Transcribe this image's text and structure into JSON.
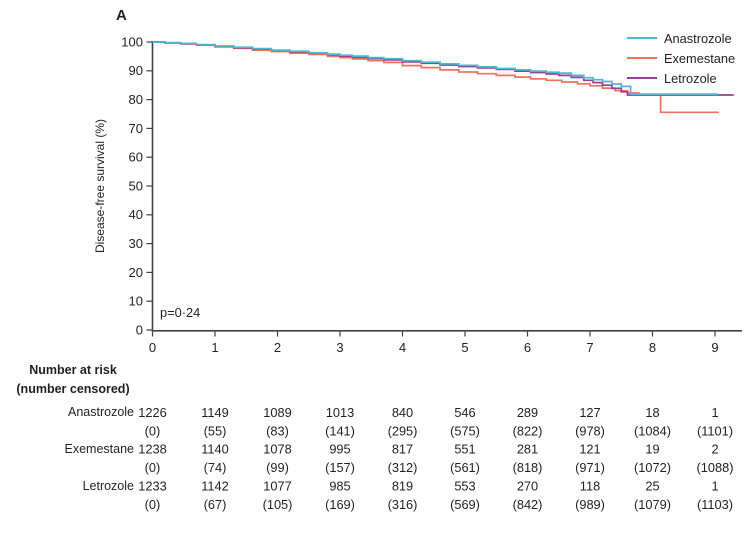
{
  "panel_label": "A",
  "colors": {
    "axis": "#404040",
    "text": "#231f20"
  },
  "chart_data": {
    "type": "line",
    "subtype": "kaplan_meier_step",
    "title": "",
    "xlabel": "",
    "ylabel": "Disease-free survival (%)",
    "xlim": [
      0,
      9.4
    ],
    "ylim": [
      0,
      100
    ],
    "xticks": [
      0,
      1,
      2,
      3,
      4,
      5,
      6,
      7,
      8,
      9
    ],
    "yticks": [
      0,
      10,
      20,
      30,
      40,
      50,
      60,
      70,
      80,
      90,
      100
    ],
    "grid": false,
    "legend_position": "top-right-inside",
    "annotations": [
      {
        "text": "p=0·24",
        "x": 0.25,
        "y": 7
      }
    ],
    "series": [
      {
        "name": "Anastrozole",
        "color": "#4bb9d1",
        "points": [
          [
            0,
            100
          ],
          [
            0.2,
            99.8
          ],
          [
            0.45,
            99.5
          ],
          [
            0.7,
            99.1
          ],
          [
            1,
            98.6
          ],
          [
            1.3,
            98.2
          ],
          [
            1.6,
            97.7
          ],
          [
            1.9,
            97.2
          ],
          [
            2.2,
            96.8
          ],
          [
            2.5,
            96.3
          ],
          [
            2.8,
            95.8
          ],
          [
            3,
            95.4
          ],
          [
            3.2,
            95.1
          ],
          [
            3.45,
            94.6
          ],
          [
            3.7,
            94.2
          ],
          [
            4,
            93.5
          ],
          [
            4.3,
            93.0
          ],
          [
            4.6,
            92.4
          ],
          [
            4.9,
            91.9
          ],
          [
            5.2,
            91.4
          ],
          [
            5.5,
            90.8
          ],
          [
            5.8,
            90.3
          ],
          [
            6.05,
            89.9
          ],
          [
            6.3,
            89.5
          ],
          [
            6.5,
            89.2
          ],
          [
            6.7,
            88.4
          ],
          [
            6.9,
            87.6
          ],
          [
            7.05,
            86.9
          ],
          [
            7.2,
            86.3
          ],
          [
            7.35,
            85.4
          ],
          [
            7.5,
            84.6
          ],
          [
            7.65,
            81.9
          ],
          [
            9.05,
            81.9
          ]
        ]
      },
      {
        "name": "Exemestane",
        "color": "#f4705e",
        "points": [
          [
            0,
            100
          ],
          [
            0.2,
            99.7
          ],
          [
            0.45,
            99.3
          ],
          [
            0.7,
            98.9
          ],
          [
            1,
            98.3
          ],
          [
            1.3,
            97.8
          ],
          [
            1.6,
            97.2
          ],
          [
            1.9,
            96.7
          ],
          [
            2.2,
            96.1
          ],
          [
            2.5,
            95.7
          ],
          [
            2.8,
            95.0
          ],
          [
            3,
            94.6
          ],
          [
            3.2,
            94.1
          ],
          [
            3.45,
            93.5
          ],
          [
            3.7,
            92.9
          ],
          [
            4,
            91.8
          ],
          [
            4.3,
            91.1
          ],
          [
            4.6,
            90.3
          ],
          [
            4.9,
            89.6
          ],
          [
            5.2,
            89.0
          ],
          [
            5.5,
            88.4
          ],
          [
            5.8,
            87.8
          ],
          [
            6.05,
            87.2
          ],
          [
            6.3,
            86.7
          ],
          [
            6.55,
            86.1
          ],
          [
            6.8,
            85.5
          ],
          [
            7,
            84.8
          ],
          [
            7.2,
            84.0
          ],
          [
            7.4,
            83.1
          ],
          [
            7.6,
            82.3
          ],
          [
            7.78,
            81.8
          ],
          [
            8.13,
            75.6
          ],
          [
            9.06,
            75.6
          ]
        ]
      },
      {
        "name": "Letrozole",
        "color": "#9c3d94",
        "points": [
          [
            0,
            100
          ],
          [
            0.2,
            99.7
          ],
          [
            0.45,
            99.4
          ],
          [
            0.7,
            99.0
          ],
          [
            1,
            98.5
          ],
          [
            1.3,
            98.0
          ],
          [
            1.6,
            97.5
          ],
          [
            1.9,
            97.1
          ],
          [
            2.2,
            96.6
          ],
          [
            2.5,
            96.2
          ],
          [
            2.8,
            95.6
          ],
          [
            3,
            95.1
          ],
          [
            3.2,
            94.7
          ],
          [
            3.45,
            94.2
          ],
          [
            3.7,
            93.8
          ],
          [
            4,
            93.1
          ],
          [
            4.3,
            92.6
          ],
          [
            4.6,
            92.0
          ],
          [
            4.9,
            91.5
          ],
          [
            5.2,
            91.0
          ],
          [
            5.5,
            90.5
          ],
          [
            5.8,
            89.9
          ],
          [
            6.05,
            89.4
          ],
          [
            6.3,
            88.9
          ],
          [
            6.5,
            88.4
          ],
          [
            6.7,
            87.7
          ],
          [
            6.9,
            86.7
          ],
          [
            7.05,
            85.9
          ],
          [
            7.2,
            85.0
          ],
          [
            7.35,
            83.9
          ],
          [
            7.5,
            82.7
          ],
          [
            7.6,
            81.6
          ],
          [
            9.3,
            81.6
          ]
        ]
      }
    ]
  },
  "risk_table": {
    "header_line1": "Number at risk",
    "header_line2": "(number censored)",
    "columns": [
      0,
      1,
      2,
      3,
      4,
      5,
      6,
      7,
      8,
      9
    ],
    "rows": [
      {
        "label": "Anastrozole",
        "at_risk": [
          "1226",
          "1149",
          "1089",
          "1013",
          "840",
          "546",
          "289",
          "127",
          "18",
          "1"
        ],
        "censored": [
          "(0)",
          "(55)",
          "(83)",
          "(141)",
          "(295)",
          "(575)",
          "(822)",
          "(978)",
          "(1084)",
          "(1101)"
        ]
      },
      {
        "label": "Exemestane",
        "at_risk": [
          "1238",
          "1140",
          "1078",
          "995",
          "817",
          "551",
          "281",
          "121",
          "19",
          "2"
        ],
        "censored": [
          "(0)",
          "(74)",
          "(99)",
          "(157)",
          "(312)",
          "(561)",
          "(818)",
          "(971)",
          "(1072)",
          "(1088)"
        ]
      },
      {
        "label": "Letrozole",
        "at_risk": [
          "1233",
          "1142",
          "1077",
          "985",
          "819",
          "553",
          "270",
          "118",
          "25",
          "1"
        ],
        "censored": [
          "(0)",
          "(67)",
          "(105)",
          "(169)",
          "(316)",
          "(569)",
          "(842)",
          "(989)",
          "(1079)",
          "(1103)"
        ]
      }
    ]
  }
}
